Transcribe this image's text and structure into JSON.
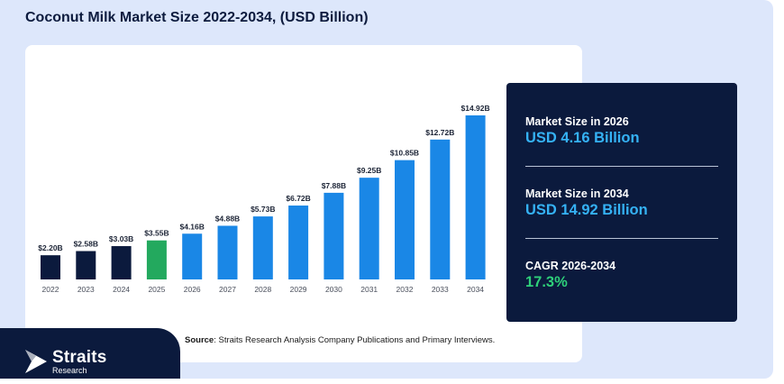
{
  "title": "Coconut Milk Market Size 2022-2034, (USD Billion)",
  "source": {
    "label": "Source",
    "text": ": Straits Research Analysis Company Publications and Primary Interviews."
  },
  "logo": {
    "name": "Straits",
    "sub": "Research"
  },
  "stats": [
    {
      "label": "Market Size in 2026",
      "value": "USD 4.16 Billion"
    },
    {
      "label": "Market Size in 2034",
      "value": "USD 14.92 Billion"
    },
    {
      "label": "CAGR 2026-2034",
      "value": "17.3%"
    }
  ],
  "colors": {
    "historical": "#0b1a3d",
    "base_year": "#23a95e",
    "forecast": "#1a87e6",
    "stat_value": "#35b2f5",
    "cagr_value": "#2ed07a",
    "background": "#dde7fb"
  },
  "chart_data": {
    "type": "bar",
    "categories": [
      "2022",
      "2023",
      "2024",
      "2025",
      "2026",
      "2027",
      "2028",
      "2029",
      "2030",
      "2031",
      "2032",
      "2033",
      "2034"
    ],
    "values": [
      2.2,
      2.58,
      3.03,
      3.55,
      4.16,
      4.88,
      5.73,
      6.72,
      7.88,
      9.25,
      10.85,
      12.72,
      14.92
    ],
    "data_labels": [
      "$2.20B",
      "$2.58B",
      "$3.03B",
      "$3.55B",
      "$4.16B",
      "$4.88B",
      "$5.73B",
      "$6.72B",
      "$7.88B",
      "$9.25B",
      "$10.85B",
      "$12.72B",
      "$14.92B"
    ],
    "bar_colors": [
      "#0b1a3d",
      "#0b1a3d",
      "#0b1a3d",
      "#23a95e",
      "#1a87e6",
      "#1a87e6",
      "#1a87e6",
      "#1a87e6",
      "#1a87e6",
      "#1a87e6",
      "#1a87e6",
      "#1a87e6",
      "#1a87e6"
    ],
    "ylim": [
      0,
      16
    ],
    "grid": false,
    "legend": "none"
  }
}
